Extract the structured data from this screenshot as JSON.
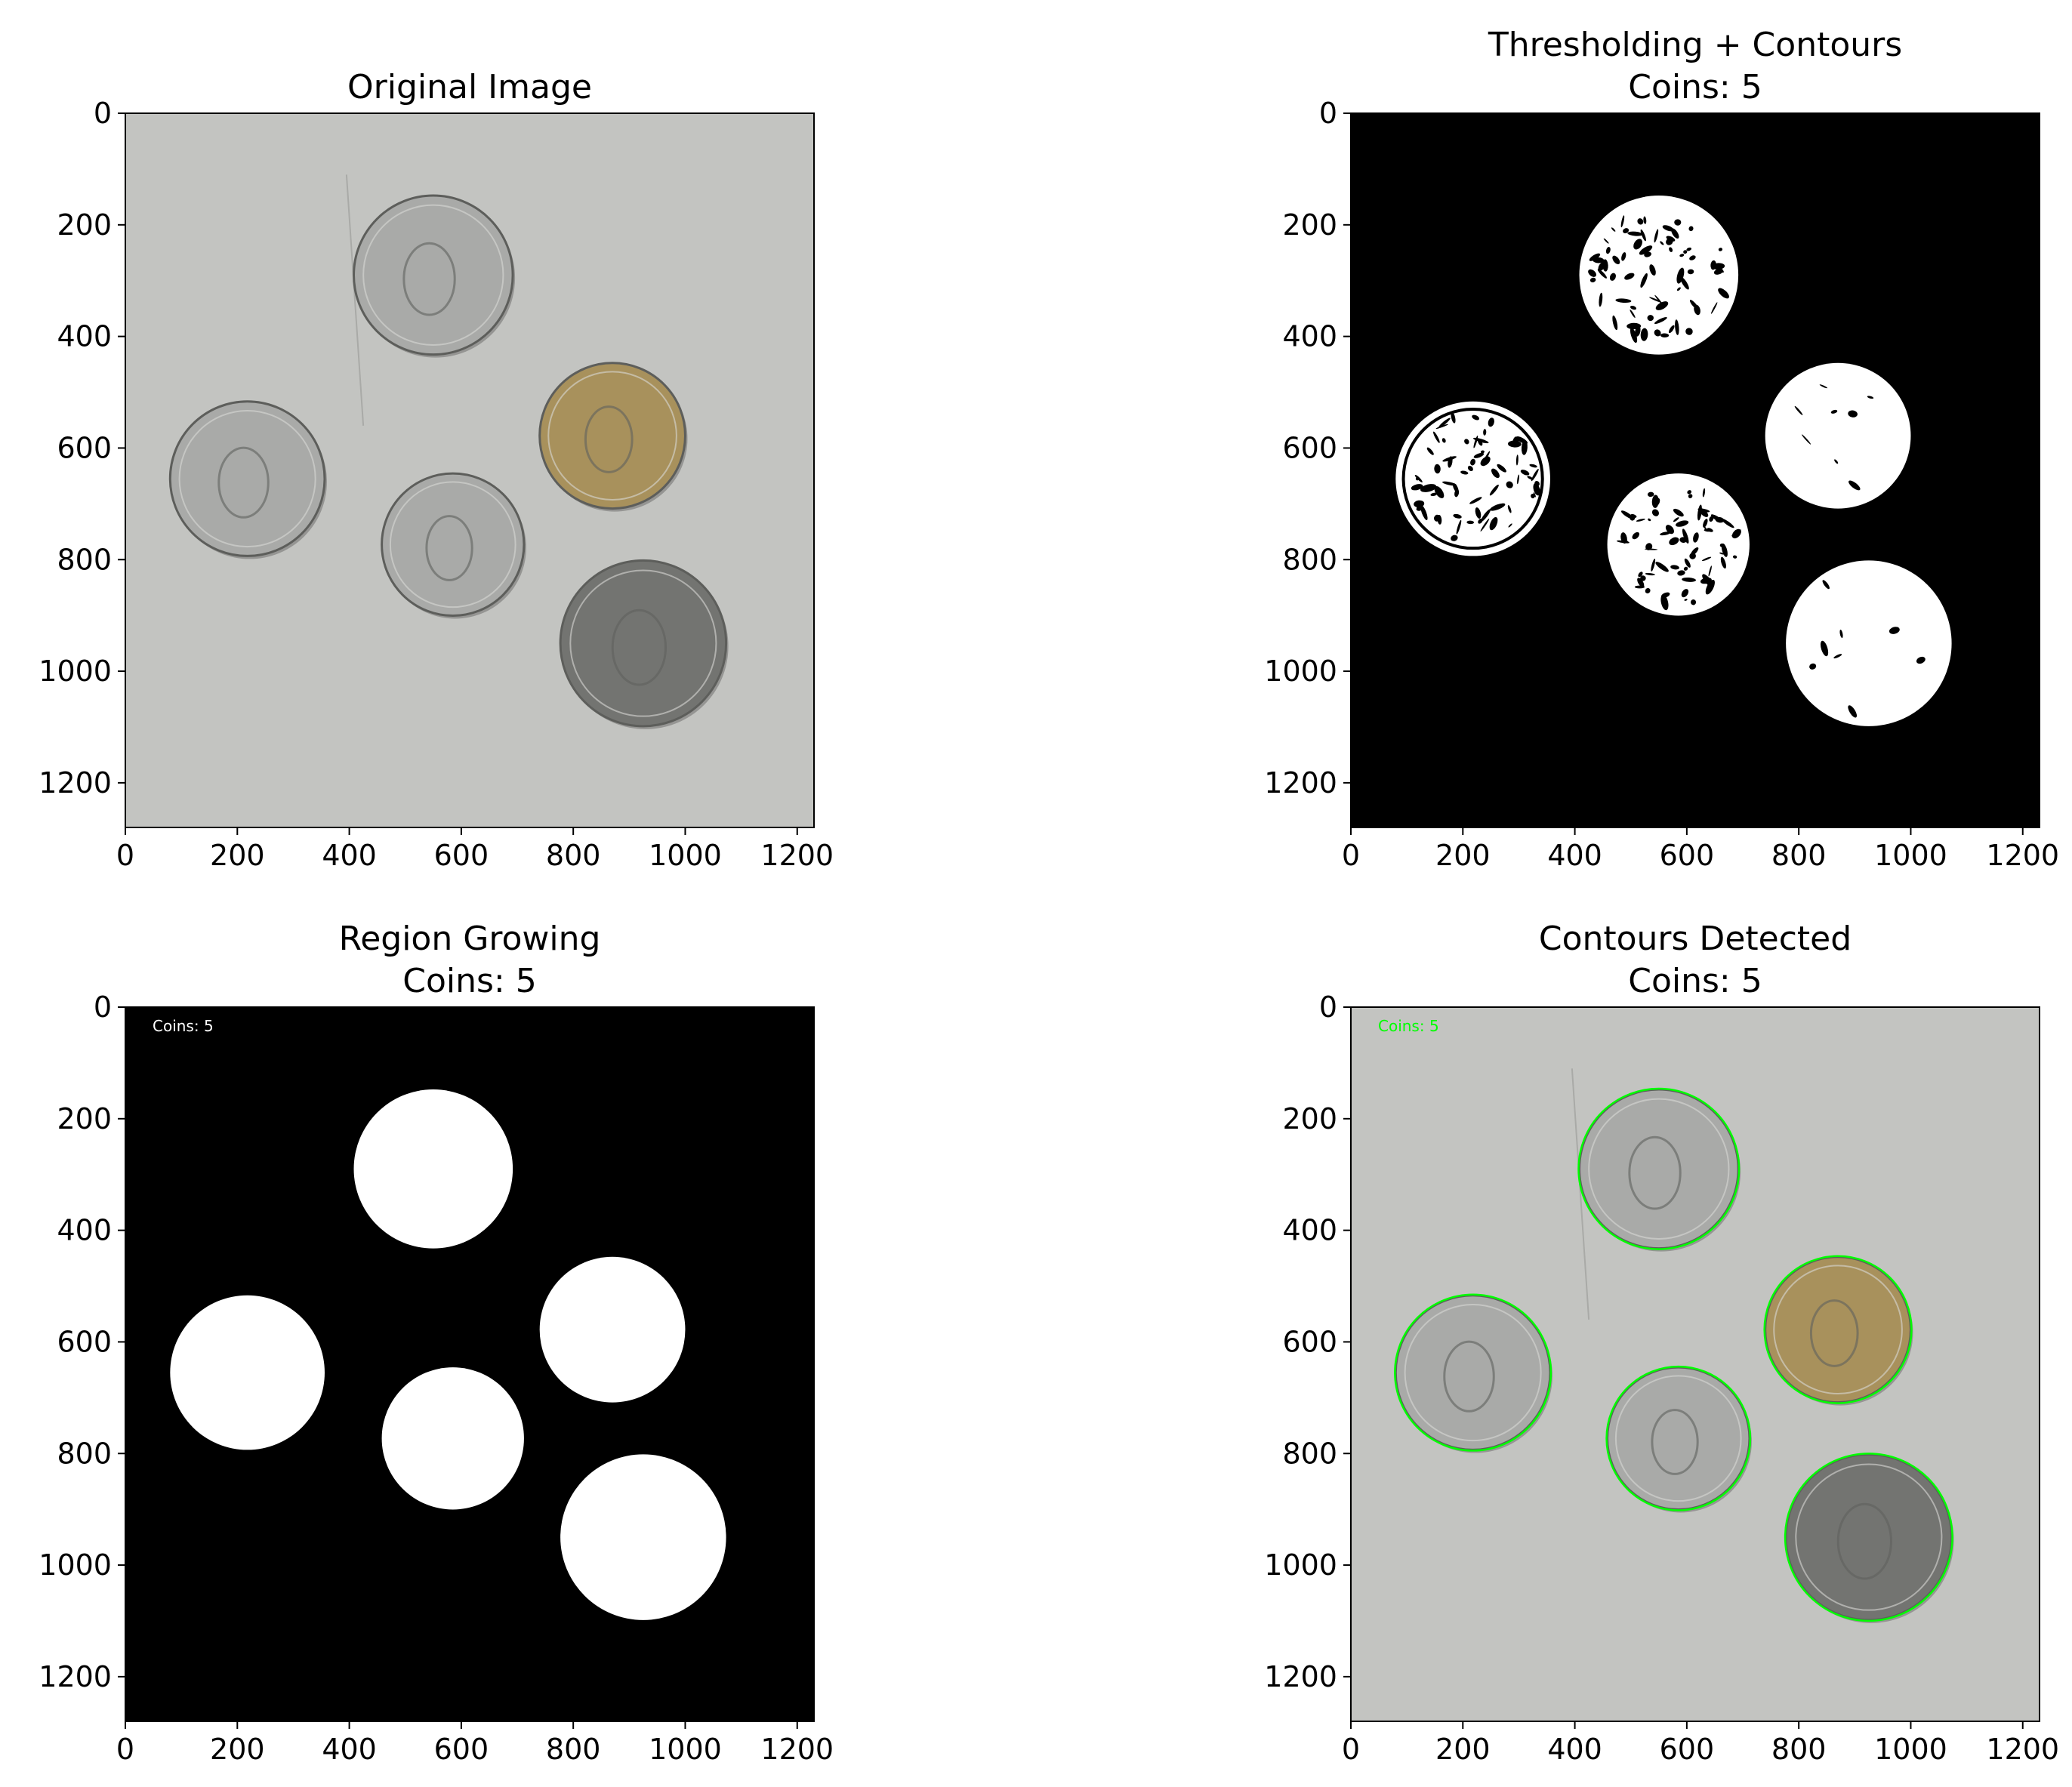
{
  "figure": {
    "colors": {
      "photo_background": "#c3c4c1",
      "silver_coin": "#a9aaa8",
      "silver_coin_dark": "#8a8b89",
      "gold_coin": "#a8915c",
      "dark_coin": "#737471",
      "binary_foreground": "#ffffff",
      "binary_background": "#000000",
      "contour": "#00ff00"
    }
  },
  "chart_data": [
    {
      "type": "image",
      "panel": "top-left",
      "title": [
        "Original Image"
      ],
      "render": "photo",
      "overlay_text": "",
      "x_ticks": [
        0,
        200,
        400,
        600,
        800,
        1000,
        1200
      ],
      "y_ticks": [
        0,
        200,
        400,
        600,
        800,
        1000,
        1200
      ],
      "xlim": [
        0,
        1230
      ],
      "ylim": [
        1280,
        0
      ],
      "coins": [
        {
          "cx": 550,
          "cy": 290,
          "r": 142,
          "kind": "silver"
        },
        {
          "cx": 870,
          "cy": 578,
          "r": 130,
          "kind": "gold"
        },
        {
          "cx": 218,
          "cy": 655,
          "r": 138,
          "kind": "silver"
        },
        {
          "cx": 585,
          "cy": 773,
          "r": 127,
          "kind": "silver"
        },
        {
          "cx": 925,
          "cy": 950,
          "r": 148,
          "kind": "dark"
        }
      ]
    },
    {
      "type": "image",
      "panel": "top-right",
      "title": [
        "Thresholding + Contours",
        "Coins: 5"
      ],
      "render": "threshold",
      "overlay_text": "",
      "x_ticks": [
        0,
        200,
        400,
        600,
        800,
        1000,
        1200
      ],
      "y_ticks": [
        0,
        200,
        400,
        600,
        800,
        1000,
        1200
      ],
      "xlim": [
        0,
        1230
      ],
      "ylim": [
        1280,
        0
      ],
      "coins": [
        {
          "cx": 550,
          "cy": 290,
          "r": 142,
          "kind": "silver"
        },
        {
          "cx": 870,
          "cy": 578,
          "r": 130,
          "kind": "gold"
        },
        {
          "cx": 218,
          "cy": 655,
          "r": 138,
          "kind": "silver"
        },
        {
          "cx": 585,
          "cy": 773,
          "r": 127,
          "kind": "silver"
        },
        {
          "cx": 925,
          "cy": 950,
          "r": 148,
          "kind": "dark"
        }
      ]
    },
    {
      "type": "image",
      "panel": "bottom-left",
      "title": [
        "Region Growing",
        "Coins: 5"
      ],
      "render": "mask",
      "overlay_text": "Coins: 5",
      "x_ticks": [
        0,
        200,
        400,
        600,
        800,
        1000,
        1200
      ],
      "y_ticks": [
        0,
        200,
        400,
        600,
        800,
        1000,
        1200
      ],
      "xlim": [
        0,
        1230
      ],
      "ylim": [
        1280,
        0
      ],
      "coins": [
        {
          "cx": 550,
          "cy": 290,
          "r": 142,
          "kind": "silver"
        },
        {
          "cx": 870,
          "cy": 578,
          "r": 130,
          "kind": "gold"
        },
        {
          "cx": 218,
          "cy": 655,
          "r": 138,
          "kind": "silver"
        },
        {
          "cx": 585,
          "cy": 773,
          "r": 127,
          "kind": "silver"
        },
        {
          "cx": 925,
          "cy": 950,
          "r": 148,
          "kind": "dark"
        }
      ]
    },
    {
      "type": "image",
      "panel": "bottom-right",
      "title": [
        "Contours Detected",
        "Coins: 5"
      ],
      "render": "photo_contours",
      "overlay_text": "Coins: 5",
      "x_ticks": [
        0,
        200,
        400,
        600,
        800,
        1000,
        1200
      ],
      "y_ticks": [
        0,
        200,
        400,
        600,
        800,
        1000,
        1200
      ],
      "xlim": [
        0,
        1230
      ],
      "ylim": [
        1280,
        0
      ],
      "coins": [
        {
          "cx": 550,
          "cy": 290,
          "r": 142,
          "kind": "silver"
        },
        {
          "cx": 870,
          "cy": 578,
          "r": 130,
          "kind": "gold"
        },
        {
          "cx": 218,
          "cy": 655,
          "r": 138,
          "kind": "silver"
        },
        {
          "cx": 585,
          "cy": 773,
          "r": 127,
          "kind": "silver"
        },
        {
          "cx": 925,
          "cy": 950,
          "r": 148,
          "kind": "dark"
        }
      ]
    }
  ]
}
